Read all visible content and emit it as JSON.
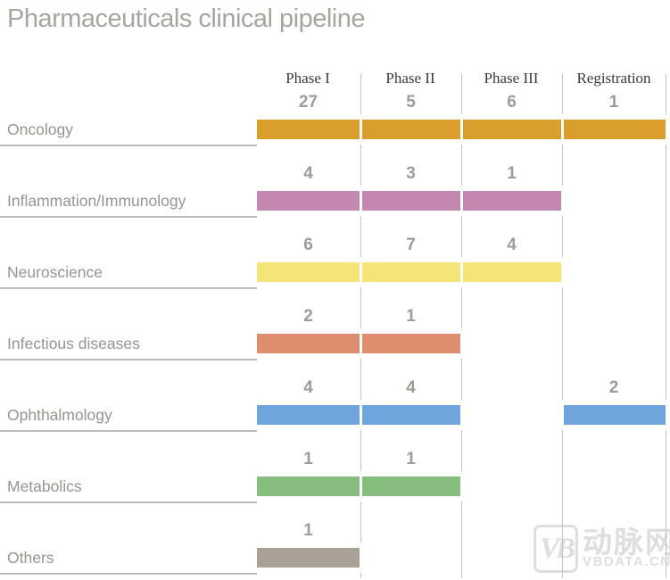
{
  "title": "Pharmaceuticals clinical pipeline",
  "chart_data": {
    "type": "bar",
    "title": "Pharmaceuticals clinical pipeline",
    "orientation": "horizontal-segmented-matrix",
    "columns": [
      "Phase I",
      "Phase II",
      "Phase III",
      "Registration"
    ],
    "rows": [
      {
        "label": "Oncology",
        "color": "#D99E2B",
        "values": [
          27,
          5,
          6,
          1
        ]
      },
      {
        "label": "Inflammation/Immunology",
        "color": "#C488B0",
        "values": [
          4,
          3,
          1,
          null
        ]
      },
      {
        "label": "Neuroscience",
        "color": "#F5E578",
        "values": [
          6,
          7,
          4,
          null
        ]
      },
      {
        "label": "Infectious diseases",
        "color": "#DE8D6F",
        "values": [
          2,
          1,
          null,
          null
        ]
      },
      {
        "label": "Ophthalmology",
        "color": "#6DA5DC",
        "values": [
          4,
          4,
          null,
          2
        ]
      },
      {
        "label": "Metabolics",
        "color": "#85BE7D",
        "values": [
          1,
          1,
          null,
          null
        ]
      },
      {
        "label": "Others",
        "color": "#AAA096",
        "values": [
          1,
          null,
          null,
          null
        ]
      }
    ],
    "legend": null,
    "grid": "vertical column dividers",
    "value_labels": "above each bar segment"
  },
  "watermark": {
    "logo_text": "VB",
    "cn_text": "动脉网",
    "site_text": "VBDATA.CN"
  },
  "colors": {
    "title_gray": "#A8A49E",
    "label_gray": "#98948F",
    "value_gray": "#9C9C98",
    "header_dark": "#3C3A37",
    "underline": "#BEBBB7",
    "grid_line": "#C8C4BF",
    "watermark": "#E0DEDC"
  }
}
